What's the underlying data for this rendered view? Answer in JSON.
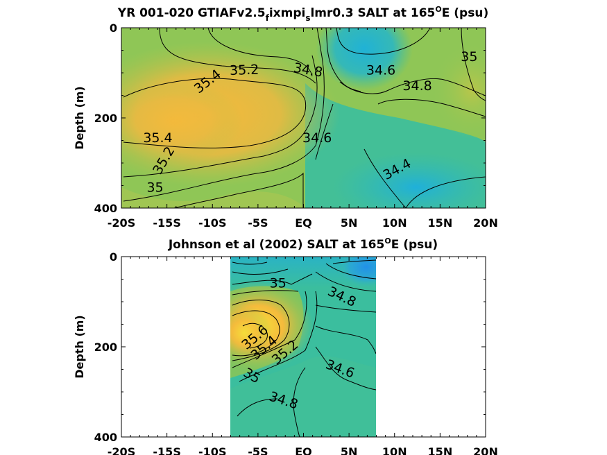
{
  "chart_data": [
    {
      "type": "contour",
      "title": "YR 001-020 GTIAFv2.5_fixmpi_slmr0.3 SALT at 165°E (psu)",
      "title_parts": [
        "YR 001-020 GTIAFv2.5",
        "f",
        "ixmpi",
        "s",
        "lmr0.3 SALT at 165",
        "O",
        "E (psu)"
      ],
      "ylabel": "Depth (m)",
      "x_ticks": [
        -20,
        -15,
        -10,
        -5,
        0,
        5,
        10,
        15,
        20
      ],
      "x_tick_labels": [
        "-20S",
        "-15S",
        "-10S",
        "-5S",
        "EQ",
        "5N",
        "10N",
        "15N",
        "20N"
      ],
      "xlim": [
        -20,
        20
      ],
      "y_ticks": [
        0,
        200,
        400
      ],
      "y_tick_labels": [
        "0",
        "200",
        "400"
      ],
      "ylim": [
        0,
        400
      ],
      "y_reversed": true,
      "data_extent_x": [
        -20,
        20
      ],
      "contour_labels": [
        {
          "text": "35.2",
          "x": -6.5,
          "y": 95
        },
        {
          "text": "35.4",
          "x": -10.5,
          "y": 120
        },
        {
          "text": "34.8",
          "x": 0.5,
          "y": 95
        },
        {
          "text": "34.6",
          "x": 8.5,
          "y": 95
        },
        {
          "text": "34.8",
          "x": 12.5,
          "y": 130
        },
        {
          "text": "35",
          "x": 18.2,
          "y": 65
        },
        {
          "text": "35.4",
          "x": -16,
          "y": 245
        },
        {
          "text": "35.2",
          "x": -15.3,
          "y": 295
        },
        {
          "text": "34.6",
          "x": 1.5,
          "y": 245
        },
        {
          "text": "35",
          "x": -16.3,
          "y": 355
        },
        {
          "text": "34.4",
          "x": 10.3,
          "y": 315
        }
      ]
    },
    {
      "type": "contour",
      "title": "Johnson et al (2002) SALT at 165°E (psu)",
      "title_parts": [
        "Johnson et al (2002) SALT at 165",
        "O",
        "E (psu)"
      ],
      "ylabel": "Depth (m)",
      "x_ticks": [
        -20,
        -15,
        -10,
        -5,
        0,
        5,
        10,
        15,
        20
      ],
      "x_tick_labels": [
        "-20S",
        "-15S",
        "-10S",
        "-5S",
        "EQ",
        "5N",
        "10N",
        "15N",
        "20N"
      ],
      "xlim": [
        -20,
        20
      ],
      "y_ticks": [
        0,
        200,
        400
      ],
      "y_tick_labels": [
        "0",
        "200",
        "400"
      ],
      "ylim": [
        0,
        400
      ],
      "y_reversed": true,
      "data_extent_x": [
        -8,
        8
      ],
      "contour_labels": [
        {
          "text": "35",
          "x": -2.8,
          "y": 60
        },
        {
          "text": "34.8",
          "x": 4.2,
          "y": 90
        },
        {
          "text": "35.6",
          "x": -5.3,
          "y": 180
        },
        {
          "text": "35.4",
          "x": -4.3,
          "y": 203
        },
        {
          "text": "35.2",
          "x": -2,
          "y": 213
        },
        {
          "text": "34.6",
          "x": 4,
          "y": 250
        },
        {
          "text": "35",
          "x": -5.7,
          "y": 265
        },
        {
          "text": "34.8",
          "x": -2.2,
          "y": 320
        }
      ]
    }
  ]
}
